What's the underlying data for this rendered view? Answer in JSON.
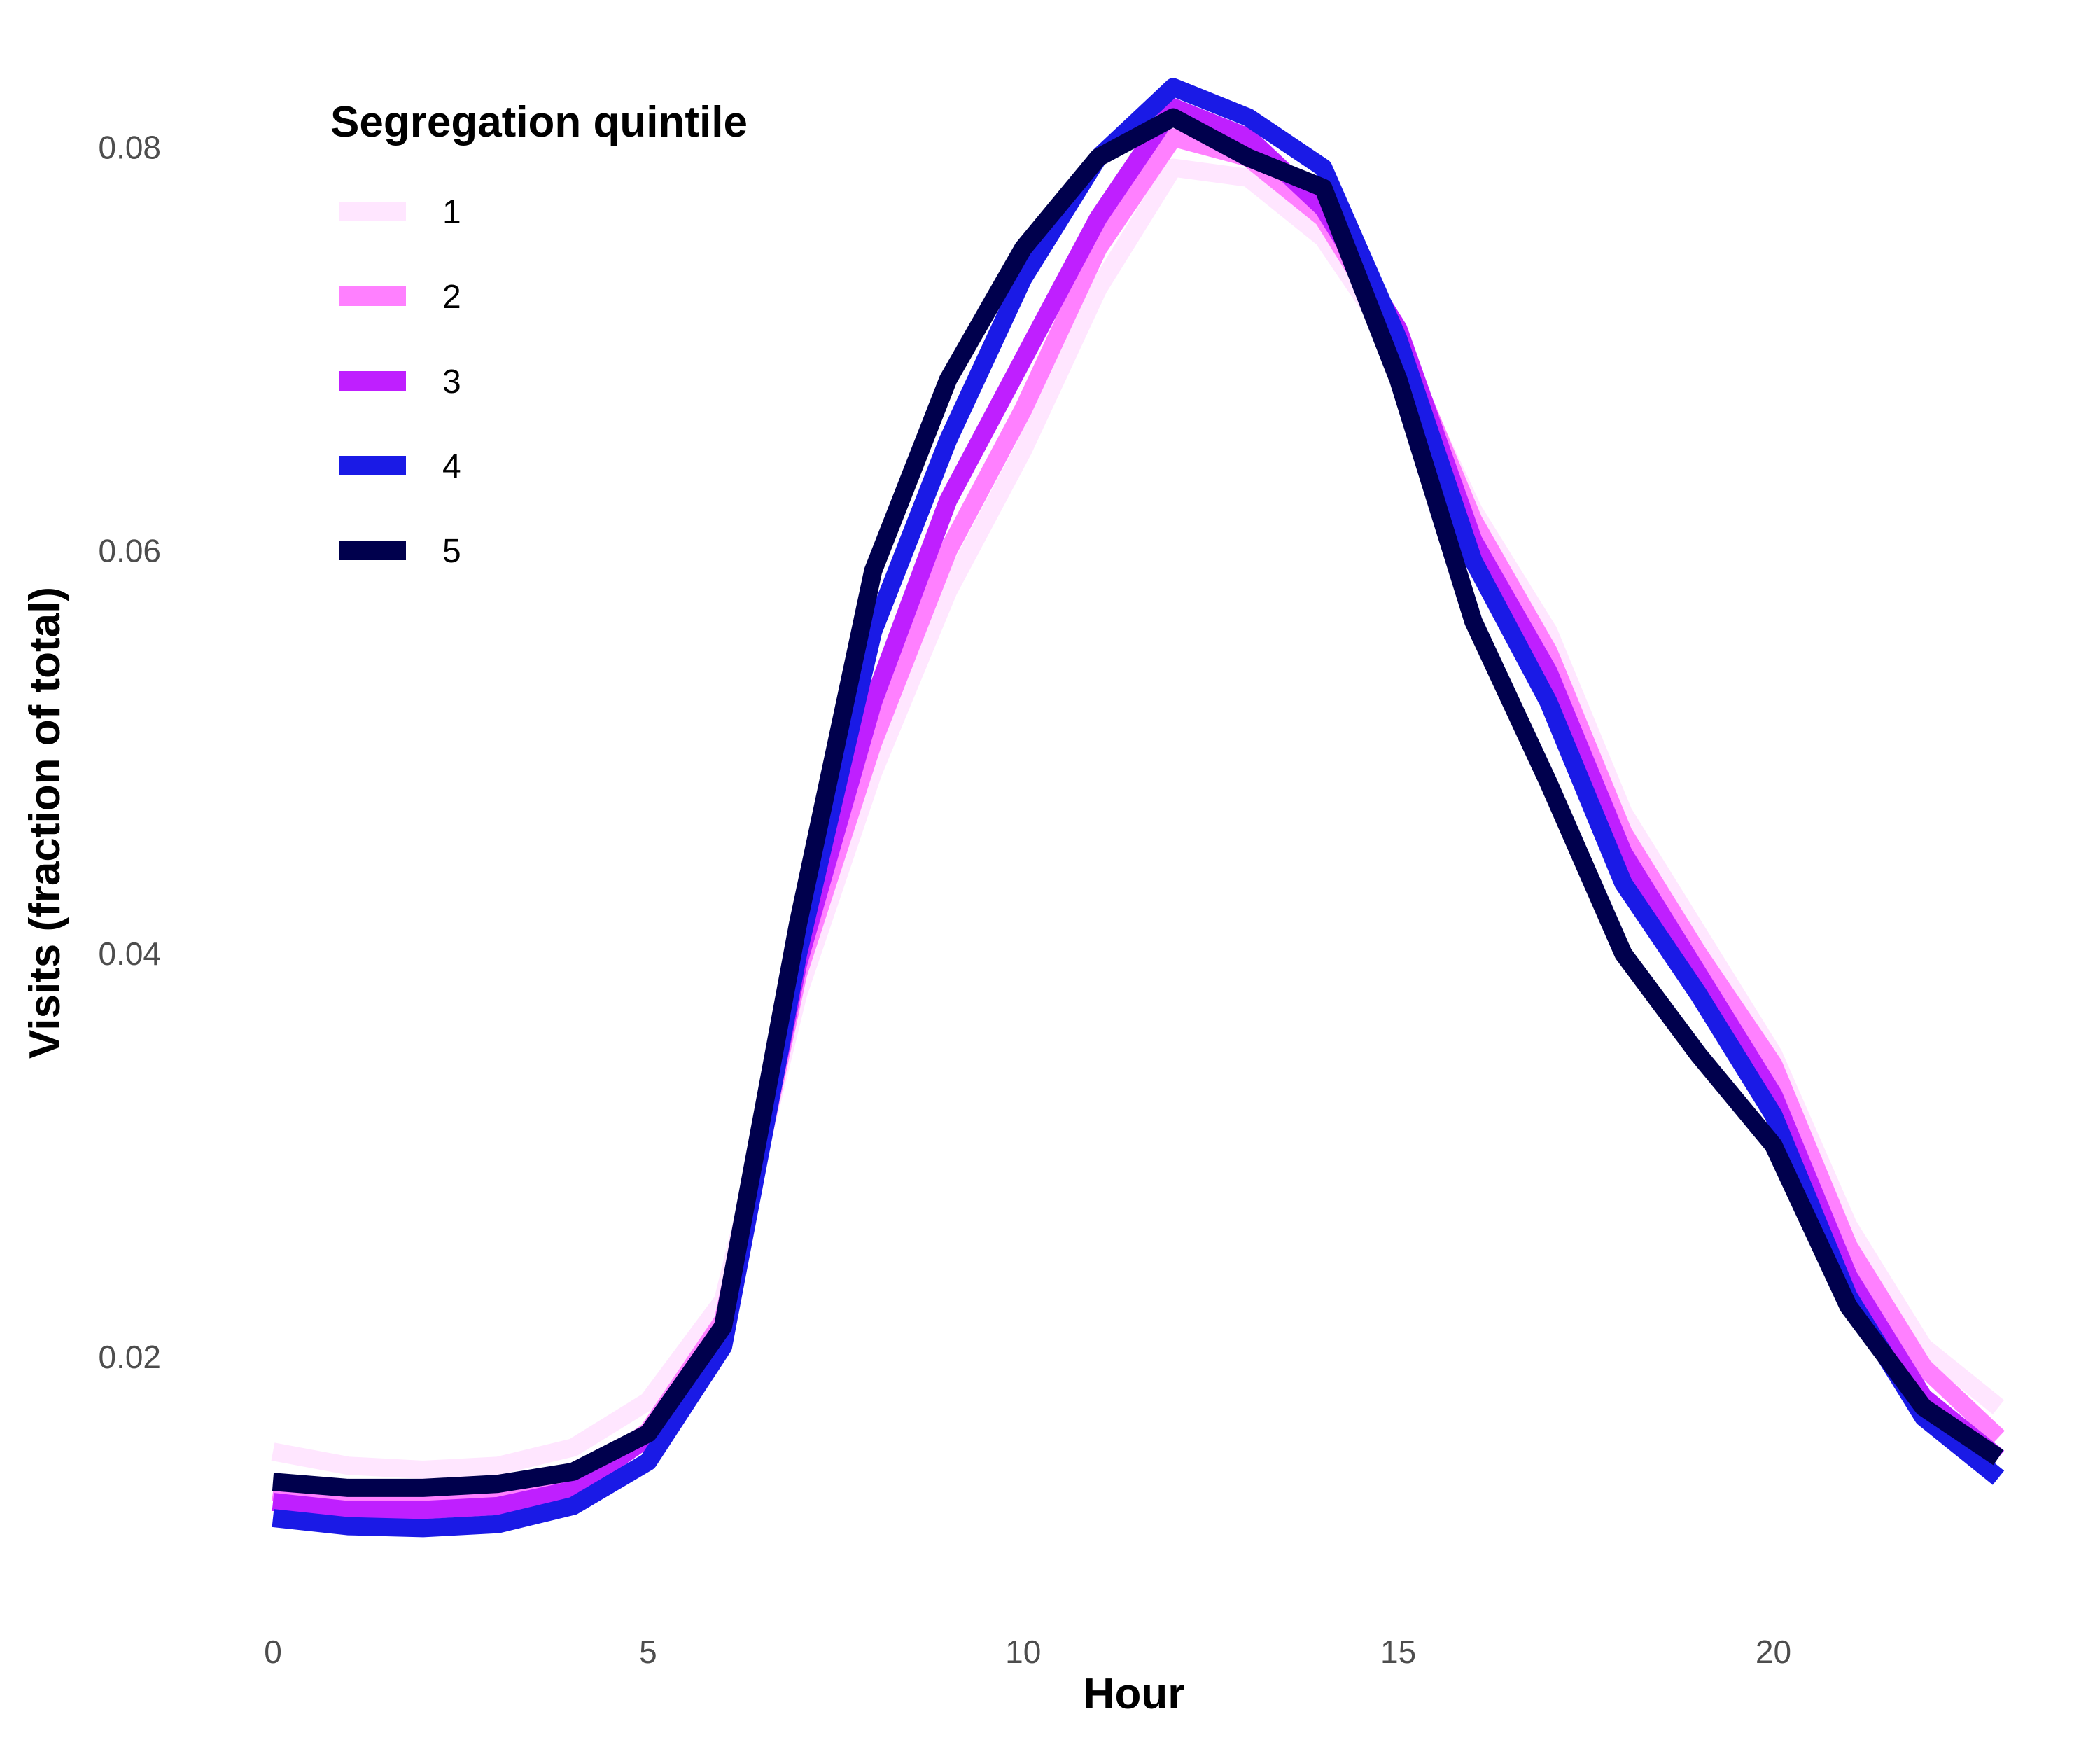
{
  "chart_data": {
    "type": "line",
    "xlabel": "Hour",
    "ylabel": "Visits (fraction of total)",
    "xlim": [
      0,
      23
    ],
    "ylim": [
      0.0095,
      0.0835
    ],
    "x_ticks": [
      0,
      5,
      10,
      15,
      20
    ],
    "x_tick_labels": [
      "0",
      "5",
      "10",
      "15",
      "20"
    ],
    "y_ticks": [
      0.02,
      0.04,
      0.06,
      0.08
    ],
    "y_tick_labels": [
      "0.02",
      "0.04",
      "0.06",
      "0.08"
    ],
    "grid": false,
    "legend": {
      "title": "Segregation quintile",
      "position": "top-left"
    },
    "x": [
      0,
      1,
      2,
      3,
      4,
      5,
      6,
      7,
      8,
      9,
      10,
      11,
      12,
      13,
      14,
      15,
      16,
      17,
      18,
      19,
      20,
      21,
      22,
      23
    ],
    "series": [
      {
        "name": "1",
        "color": "#ffe6ff",
        "values": [
          0.0153,
          0.0146,
          0.0144,
          0.0146,
          0.0155,
          0.0178,
          0.0228,
          0.038,
          0.049,
          0.058,
          0.065,
          0.073,
          0.079,
          0.0785,
          0.0755,
          0.07,
          0.062,
          0.056,
          0.047,
          0.041,
          0.035,
          0.0265,
          0.0205,
          0.0175
        ]
      },
      {
        "name": "2",
        "color": "#ff80ff",
        "values": [
          0.0133,
          0.0128,
          0.0127,
          0.0129,
          0.0137,
          0.0163,
          0.0218,
          0.039,
          0.0505,
          0.06,
          0.067,
          0.075,
          0.0805,
          0.0795,
          0.0765,
          0.0705,
          0.0615,
          0.055,
          0.046,
          0.04,
          0.0345,
          0.0255,
          0.0195,
          0.016
        ]
      },
      {
        "name": "3",
        "color": "#bf1fff",
        "values": [
          0.0128,
          0.0124,
          0.0124,
          0.0126,
          0.0134,
          0.016,
          0.0215,
          0.0395,
          0.0525,
          0.0625,
          0.0695,
          0.0765,
          0.082,
          0.0805,
          0.077,
          0.071,
          0.0605,
          0.054,
          0.045,
          0.039,
          0.033,
          0.024,
          0.018,
          0.015
        ]
      },
      {
        "name": "4",
        "color": "#1a1ae6",
        "values": [
          0.012,
          0.0116,
          0.0115,
          0.0117,
          0.0126,
          0.0148,
          0.0205,
          0.04,
          0.056,
          0.0655,
          0.0735,
          0.0795,
          0.083,
          0.0815,
          0.079,
          0.0705,
          0.0595,
          0.0525,
          0.0435,
          0.038,
          0.032,
          0.023,
          0.017,
          0.014
        ]
      },
      {
        "name": "5",
        "color": "#00004d",
        "values": [
          0.0138,
          0.0135,
          0.0135,
          0.0137,
          0.0143,
          0.0162,
          0.0215,
          0.0415,
          0.059,
          0.0685,
          0.075,
          0.0795,
          0.0815,
          0.0795,
          0.078,
          0.0685,
          0.0565,
          0.0485,
          0.04,
          0.035,
          0.0305,
          0.0225,
          0.0175,
          0.015
        ]
      }
    ]
  }
}
